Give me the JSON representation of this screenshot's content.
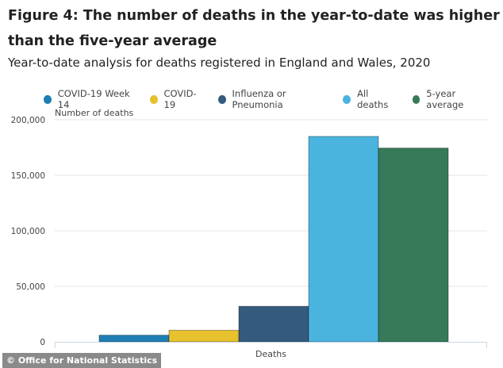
{
  "chart_data": {
    "type": "bar",
    "title": "Figure 4: The number of deaths in the year-to-date was higher than the five-year average",
    "subtitle": "Year-to-date analysis for deaths registered in England and Wales, 2020",
    "ylabel": "Number of deaths",
    "xlabel": "",
    "categories": [
      "Deaths"
    ],
    "ylim": [
      0,
      200000
    ],
    "yticks": [
      "0",
      "50,000",
      "100,000",
      "150,000",
      "200,000"
    ],
    "grid": true,
    "legend_position": "top",
    "series": [
      {
        "name": "COVID-19 Week 14",
        "values": [
          6000
        ],
        "color": "#1f7fb4"
      },
      {
        "name": "COVID-19",
        "values": [
          10400
        ],
        "color": "#e8c12e"
      },
      {
        "name": "Influenza or Pneumonia",
        "values": [
          32000
        ],
        "color": "#345b7d"
      },
      {
        "name": "All deaths",
        "values": [
          185000
        ],
        "color": "#4ab4de"
      },
      {
        "name": "5-year average",
        "values": [
          174500
        ],
        "color": "#367a59"
      }
    ]
  },
  "credit": "© Office for National Statistics"
}
